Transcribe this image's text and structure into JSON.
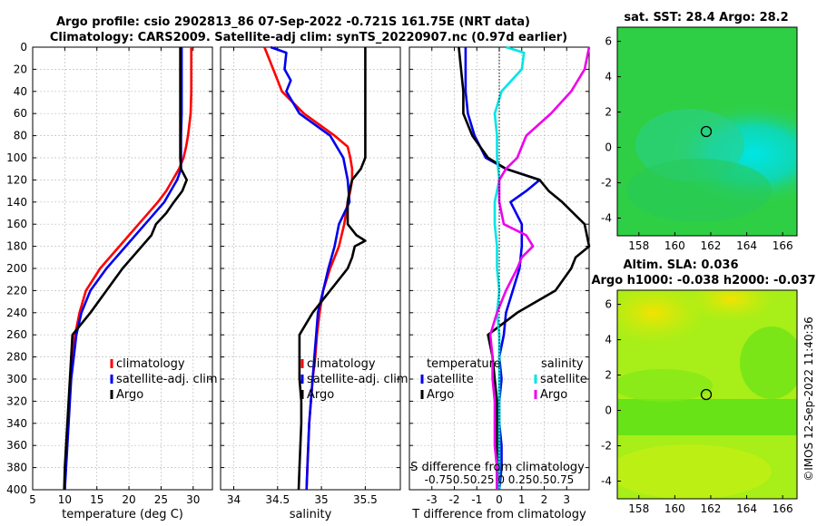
{
  "title_line1": "Argo profile: csio 2902813_86 07-Sep-2022 -0.721S 161.75E (NRT data)",
  "title_line2": "Climatology: CARS2009. Satellite-adj clim: synTS_20220907.nc (0.97d earlier)",
  "watermark": "©IMOS 12-Sep-2022 11:40:36",
  "colors": {
    "climatology": "#ff0000",
    "satellite": "#0000ee",
    "argo": "#000000",
    "cyan": "#00e5e5",
    "magenta": "#ee00ee"
  },
  "depth_ticks": [
    "0",
    "20",
    "40",
    "60",
    "80",
    "100",
    "120",
    "140",
    "160",
    "180",
    "200",
    "220",
    "240",
    "260",
    "280",
    "300",
    "320",
    "340",
    "360",
    "380",
    "400"
  ],
  "chart_data": [
    {
      "type": "line",
      "name": "temperature",
      "xlabel": "temperature (deg C)",
      "xlim": [
        5,
        33
      ],
      "ylim": [
        0,
        400
      ],
      "xticks": [
        "5",
        "10",
        "15",
        "20",
        "25",
        "30"
      ],
      "legend": [
        "climatology",
        "satellite-adj. clim",
        "Argo"
      ],
      "series": [
        {
          "name": "climatology",
          "depth": [
            0,
            20,
            40,
            60,
            80,
            90,
            100,
            110,
            120,
            130,
            140,
            160,
            180,
            200,
            220,
            240,
            260,
            280,
            300,
            320,
            340,
            360,
            380,
            400
          ],
          "values": [
            29.7,
            29.7,
            29.7,
            29.6,
            29.2,
            28.9,
            28.5,
            27.8,
            26.8,
            25.8,
            24.5,
            21.5,
            18.5,
            15.5,
            13.3,
            12.3,
            11.6,
            11.2,
            10.9,
            10.7,
            10.5,
            10.3,
            10.1,
            10.0
          ]
        },
        {
          "name": "satellite-adj. clim",
          "depth": [
            0,
            20,
            40,
            60,
            80,
            100,
            110,
            120,
            130,
            140,
            160,
            180,
            200,
            220,
            240,
            260,
            280,
            300,
            320,
            340,
            360,
            380,
            400
          ],
          "values": [
            28.2,
            28.2,
            28.2,
            28.2,
            28.1,
            28.1,
            28.1,
            27.5,
            26.5,
            25.5,
            22.5,
            19.5,
            16.5,
            14.0,
            12.6,
            11.8,
            11.4,
            11.0,
            10.8,
            10.6,
            10.4,
            10.2,
            10.0
          ]
        },
        {
          "name": "Argo",
          "depth": [
            0,
            20,
            40,
            60,
            80,
            100,
            110,
            120,
            130,
            140,
            150,
            160,
            170,
            180,
            190,
            200,
            220,
            240,
            260,
            280,
            300,
            320,
            340,
            360,
            380,
            400
          ],
          "values": [
            28.0,
            28.0,
            28.0,
            28.0,
            28.0,
            28.0,
            28.1,
            29.0,
            28.3,
            27.0,
            25.8,
            24.2,
            23.5,
            22.0,
            20.5,
            19.0,
            16.5,
            14.0,
            11.2,
            11.0,
            10.8,
            10.6,
            10.4,
            10.2,
            10.0,
            9.9
          ]
        }
      ]
    },
    {
      "type": "line",
      "name": "salinity",
      "xlabel": "salinity",
      "xlim": [
        33.85,
        35.9
      ],
      "ylim": [
        0,
        400
      ],
      "xticks": [
        "34",
        "34.5",
        "35",
        "35.5"
      ],
      "legend": [
        "climatology",
        "satellite-adj. clim",
        "Argo"
      ],
      "series": [
        {
          "name": "climatology",
          "depth": [
            0,
            20,
            40,
            60,
            80,
            90,
            100,
            110,
            120,
            130,
            140,
            160,
            180,
            200,
            220,
            240,
            260,
            280,
            300,
            320,
            340,
            360,
            380,
            400
          ],
          "values": [
            34.35,
            34.45,
            34.55,
            34.8,
            35.15,
            35.3,
            35.33,
            35.35,
            35.35,
            35.33,
            35.3,
            35.26,
            35.2,
            35.1,
            35.02,
            34.98,
            34.95,
            34.93,
            34.9,
            34.88,
            34.86,
            34.85,
            34.84,
            34.83
          ]
        },
        {
          "name": "satellite-adj. clim",
          "depth": [
            0,
            5,
            20,
            30,
            40,
            60,
            80,
            100,
            120,
            140,
            160,
            180,
            200,
            220,
            240,
            260,
            280,
            300,
            320,
            340,
            360,
            380,
            400
          ],
          "values": [
            34.42,
            34.6,
            34.58,
            34.65,
            34.6,
            34.75,
            35.1,
            35.25,
            35.3,
            35.32,
            35.2,
            35.15,
            35.08,
            35.02,
            34.96,
            34.94,
            34.92,
            34.9,
            34.88,
            34.86,
            34.85,
            34.84,
            34.83
          ]
        },
        {
          "name": "Argo",
          "depth": [
            0,
            20,
            40,
            60,
            80,
            100,
            110,
            120,
            130,
            140,
            160,
            170,
            175,
            180,
            190,
            200,
            220,
            240,
            260,
            280,
            300,
            320,
            340,
            360,
            380,
            400
          ],
          "values": [
            35.5,
            35.5,
            35.5,
            35.5,
            35.5,
            35.5,
            35.45,
            35.35,
            35.32,
            35.3,
            35.3,
            35.4,
            35.5,
            35.38,
            35.35,
            35.3,
            35.1,
            34.9,
            34.75,
            34.75,
            34.75,
            34.77,
            34.77,
            34.76,
            34.75,
            34.74
          ]
        }
      ]
    },
    {
      "type": "line",
      "name": "differences",
      "xlabel": "T difference from climatology",
      "xlabel_top": "S difference from climatology",
      "xlim": [
        -4,
        4
      ],
      "ylim": [
        0,
        400
      ],
      "xticks": [
        "-3",
        "-2",
        "-1",
        "0",
        "1",
        "2",
        "3"
      ],
      "xticks_top_text": "-0.750.50.25  0  0.250.50.75",
      "legend_temperature": [
        "temperature",
        "satellite",
        "Argo"
      ],
      "legend_salinity": [
        "salinity",
        "satellite",
        "Argo"
      ],
      "series": [
        {
          "name": "T satellite",
          "depth": [
            0,
            20,
            40,
            60,
            80,
            100,
            110,
            120,
            130,
            140,
            160,
            180,
            200,
            220,
            240,
            260,
            280,
            300,
            320,
            340,
            360,
            380,
            400
          ],
          "values": [
            -1.5,
            -1.5,
            -1.5,
            -1.4,
            -1.1,
            -0.6,
            0.3,
            1.8,
            1.2,
            0.5,
            1.0,
            1.0,
            0.9,
            0.6,
            0.3,
            0.2,
            0.0,
            0.1,
            0.0,
            0.0,
            0.1,
            0.1,
            0.0
          ]
        },
        {
          "name": "T Argo",
          "depth": [
            0,
            20,
            40,
            60,
            80,
            100,
            110,
            120,
            130,
            140,
            160,
            180,
            190,
            200,
            220,
            240,
            260,
            280,
            300,
            320,
            340,
            360,
            380,
            400
          ],
          "values": [
            -1.8,
            -1.7,
            -1.6,
            -1.6,
            -1.2,
            -0.5,
            0.3,
            1.8,
            2.2,
            2.8,
            3.8,
            4.0,
            3.4,
            3.2,
            2.5,
            0.8,
            -0.5,
            -0.3,
            -0.2,
            -0.1,
            -0.1,
            -0.1,
            -0.1,
            -0.1
          ]
        },
        {
          "name": "S satellite",
          "depth": [
            0,
            5,
            20,
            40,
            60,
            80,
            100,
            120,
            140,
            160,
            180,
            200,
            220,
            240,
            260,
            280,
            300,
            320,
            340,
            360,
            380,
            400
          ],
          "values": [
            0.3,
            1.1,
            1.0,
            0.1,
            -0.2,
            -0.1,
            -0.1,
            0.0,
            -0.2,
            -0.2,
            -0.1,
            -0.1,
            0.0,
            -0.1,
            0.0,
            0.0,
            0.0,
            0.0,
            0.0,
            0.0,
            0.0,
            0.0
          ]
        },
        {
          "name": "S Argo",
          "depth": [
            0,
            20,
            40,
            60,
            80,
            100,
            110,
            120,
            130,
            140,
            160,
            170,
            180,
            190,
            200,
            220,
            240,
            260,
            280,
            300,
            320,
            340,
            360,
            380,
            400
          ],
          "values": [
            4.0,
            3.8,
            3.2,
            2.3,
            1.2,
            0.8,
            0.3,
            0.0,
            0.0,
            0.0,
            0.2,
            1.2,
            1.5,
            1.0,
            0.8,
            0.3,
            -0.1,
            -0.4,
            -0.3,
            -0.3,
            -0.2,
            -0.2,
            -0.2,
            -0.1,
            -0.1
          ]
        }
      ]
    },
    {
      "type": "heatmap",
      "name": "sst_map",
      "title": "sat. SST: 28.4 Argo: 28.2",
      "xlim": [
        156.8,
        166.8
      ],
      "ylim": [
        -5,
        6.8
      ],
      "xticks": [
        "158",
        "160",
        "162",
        "164",
        "166"
      ],
      "yticks": [
        "-4",
        "-2",
        "0",
        "2",
        "4",
        "6"
      ],
      "marker": {
        "lon": 161.75,
        "lat": 0.721
      }
    },
    {
      "type": "heatmap",
      "name": "sla_map",
      "title_line1": "Altim. SLA: 0.036",
      "title_line2": "Argo h1000: -0.038 h2000: -0.037",
      "xlim": [
        156.8,
        166.8
      ],
      "ylim": [
        -5,
        6.8
      ],
      "xticks": [
        "158",
        "160",
        "162",
        "164",
        "166"
      ],
      "yticks": [
        "-4",
        "-2",
        "0",
        "2",
        "4",
        "6"
      ],
      "marker": {
        "lon": 161.75,
        "lat": 0.721
      }
    }
  ]
}
